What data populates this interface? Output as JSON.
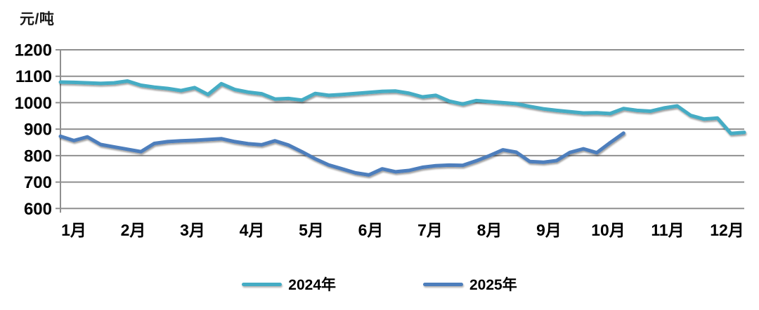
{
  "chart_data": {
    "type": "line",
    "unit_label": "元/吨",
    "categories": [
      "1月",
      "2月",
      "3月",
      "4月",
      "5月",
      "6月",
      "7月",
      "8月",
      "9月",
      "10月",
      "11月",
      "12月"
    ],
    "y_ticks": [
      600,
      700,
      800,
      900,
      1000,
      1100,
      1200
    ],
    "ylim": [
      600,
      1200
    ],
    "x_resolution": "weekly",
    "grid": "horizontal",
    "legend_position": "bottom",
    "axis_color": "#8f8f8f",
    "series": [
      {
        "name": "2024年",
        "color": "#44acc4",
        "values": [
          1078,
          1077,
          1075,
          1073,
          1075,
          1082,
          1066,
          1059,
          1054,
          1046,
          1057,
          1031,
          1072,
          1050,
          1040,
          1034,
          1014,
          1016,
          1010,
          1035,
          1028,
          1031,
          1035,
          1039,
          1043,
          1044,
          1036,
          1022,
          1028,
          1006,
          995,
          1008,
          1004,
          1000,
          996,
          986,
          977,
          971,
          966,
          961,
          962,
          959,
          978,
          971,
          968,
          980,
          988,
          952,
          938,
          942,
          884,
          888
        ]
      },
      {
        "name": "2025年",
        "color": "#4d7ebc",
        "values": [
          873,
          857,
          871,
          842,
          833,
          824,
          815,
          846,
          853,
          856,
          858,
          861,
          864,
          853,
          845,
          841,
          856,
          840,
          815,
          788,
          765,
          750,
          735,
          727,
          750,
          739,
          744,
          756,
          762,
          764,
          763,
          780,
          800,
          822,
          813,
          778,
          775,
          781,
          812,
          826,
          811,
          849,
          885
        ]
      }
    ]
  }
}
